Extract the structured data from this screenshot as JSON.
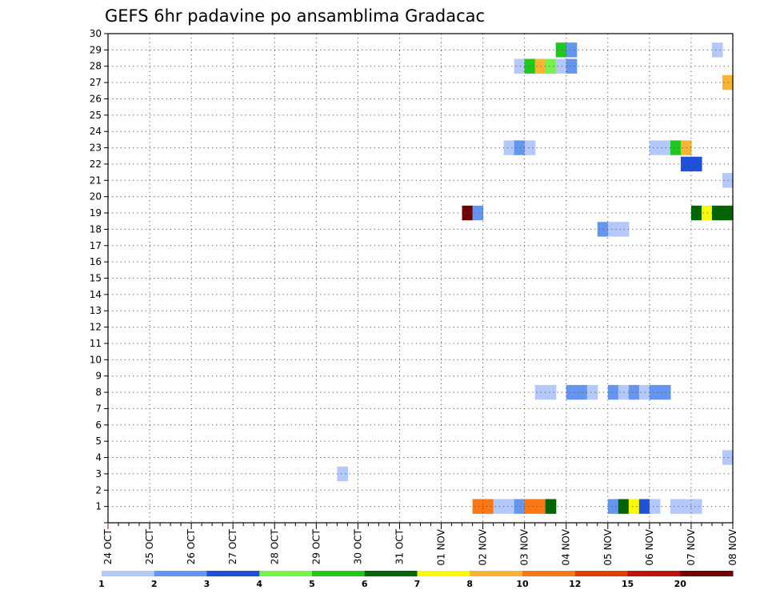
{
  "chart_data": {
    "type": "heatmap",
    "title": "GEFS 6hr padavine po ansamblima Gradacac",
    "xlabel": "",
    "ylabel": "",
    "x_ticks": [
      "24 OCT",
      "25 OCT",
      "26 OCT",
      "27 OCT",
      "28 OCT",
      "29 OCT",
      "30 OCT",
      "31 OCT",
      "01 NOV",
      "02 NOV",
      "03 NOV",
      "04 NOV",
      "05 NOV",
      "06 NOV",
      "07 NOV",
      "08 NOV"
    ],
    "x_range_days": [
      0,
      15
    ],
    "y_ticks": [
      1,
      2,
      3,
      4,
      5,
      6,
      7,
      8,
      9,
      10,
      11,
      12,
      13,
      14,
      15,
      16,
      17,
      18,
      19,
      20,
      21,
      22,
      23,
      24,
      25,
      26,
      27,
      28,
      29,
      30
    ],
    "ylim": [
      0,
      30
    ],
    "grid": true,
    "legend": {
      "placement": "bottom",
      "labels": [
        "1",
        "2",
        "3",
        "4",
        "5",
        "6",
        "7",
        "8",
        "10",
        "12",
        "15",
        "20"
      ],
      "colors": [
        "#b4c8fa",
        "#6496f0",
        "#1e50dc",
        "#78f050",
        "#1ec81e",
        "#006400",
        "#fafa00",
        "#fab432",
        "#fa7814",
        "#e63c0a",
        "#c01010",
        "#6e0000"
      ]
    },
    "cells": [
      {
        "member": 1,
        "time": 8.75,
        "value": 10
      },
      {
        "member": 1,
        "time": 9.0,
        "value": 10
      },
      {
        "member": 1,
        "time": 9.25,
        "value": 1
      },
      {
        "member": 1,
        "time": 9.5,
        "value": 1
      },
      {
        "member": 1,
        "time": 9.75,
        "value": 2
      },
      {
        "member": 1,
        "time": 10.0,
        "value": 10
      },
      {
        "member": 1,
        "time": 10.25,
        "value": 10
      },
      {
        "member": 1,
        "time": 10.5,
        "value": 6
      },
      {
        "member": 1,
        "time": 12.0,
        "value": 2
      },
      {
        "member": 1,
        "time": 12.25,
        "value": 6
      },
      {
        "member": 1,
        "time": 12.5,
        "value": 7
      },
      {
        "member": 1,
        "time": 12.75,
        "value": 3
      },
      {
        "member": 1,
        "time": 13.0,
        "value": 1
      },
      {
        "member": 1,
        "time": 13.5,
        "value": 1
      },
      {
        "member": 1,
        "time": 13.75,
        "value": 1
      },
      {
        "member": 1,
        "time": 14.0,
        "value": 1
      },
      {
        "member": 3,
        "time": 5.5,
        "value": 1
      },
      {
        "member": 4,
        "time": 14.75,
        "value": 1
      },
      {
        "member": 8,
        "time": 10.25,
        "value": 1
      },
      {
        "member": 8,
        "time": 10.5,
        "value": 1
      },
      {
        "member": 8,
        "time": 11.0,
        "value": 2
      },
      {
        "member": 8,
        "time": 11.25,
        "value": 2
      },
      {
        "member": 8,
        "time": 11.5,
        "value": 1
      },
      {
        "member": 8,
        "time": 12.0,
        "value": 2
      },
      {
        "member": 8,
        "time": 12.25,
        "value": 1
      },
      {
        "member": 8,
        "time": 12.5,
        "value": 2
      },
      {
        "member": 8,
        "time": 12.75,
        "value": 1
      },
      {
        "member": 8,
        "time": 13.0,
        "value": 2
      },
      {
        "member": 8,
        "time": 13.25,
        "value": 2
      },
      {
        "member": 18,
        "time": 11.75,
        "value": 2
      },
      {
        "member": 18,
        "time": 12.0,
        "value": 1
      },
      {
        "member": 18,
        "time": 12.25,
        "value": 1
      },
      {
        "member": 19,
        "time": 8.5,
        "value": 20
      },
      {
        "member": 19,
        "time": 8.75,
        "value": 2
      },
      {
        "member": 19,
        "time": 14.0,
        "value": 6
      },
      {
        "member": 19,
        "time": 14.25,
        "value": 7
      },
      {
        "member": 19,
        "time": 14.5,
        "value": 6
      },
      {
        "member": 19,
        "time": 14.75,
        "value": 6
      },
      {
        "member": 21,
        "time": 14.75,
        "value": 1
      },
      {
        "member": 22,
        "time": 13.75,
        "value": 3
      },
      {
        "member": 22,
        "time": 14.0,
        "value": 3
      },
      {
        "member": 23,
        "time": 9.5,
        "value": 1
      },
      {
        "member": 23,
        "time": 9.75,
        "value": 2
      },
      {
        "member": 23,
        "time": 10.0,
        "value": 1
      },
      {
        "member": 23,
        "time": 13.0,
        "value": 1
      },
      {
        "member": 23,
        "time": 13.25,
        "value": 1
      },
      {
        "member": 23,
        "time": 13.5,
        "value": 5
      },
      {
        "member": 23,
        "time": 13.75,
        "value": 8
      },
      {
        "member": 27,
        "time": 14.75,
        "value": 8
      },
      {
        "member": 28,
        "time": 9.75,
        "value": 1
      },
      {
        "member": 28,
        "time": 10.0,
        "value": 5
      },
      {
        "member": 28,
        "time": 10.25,
        "value": 8
      },
      {
        "member": 28,
        "time": 10.5,
        "value": 4
      },
      {
        "member": 28,
        "time": 10.75,
        "value": 1
      },
      {
        "member": 28,
        "time": 11.0,
        "value": 2
      },
      {
        "member": 29,
        "time": 10.75,
        "value": 5
      },
      {
        "member": 29,
        "time": 11.0,
        "value": 2
      },
      {
        "member": 29,
        "time": 14.5,
        "value": 1
      }
    ]
  }
}
